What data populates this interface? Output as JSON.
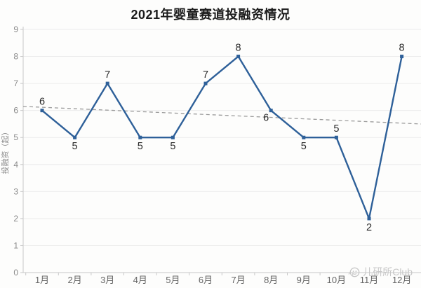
{
  "title": "2021年婴童赛道投融资情况",
  "watermark": {
    "text": "儿研所Club",
    "icon": "face-logo-icon"
  },
  "chart_data": {
    "type": "line",
    "title": "2021年婴童赛道投融资情况",
    "categories": [
      "1月",
      "2月",
      "3月",
      "4月",
      "5月",
      "6月",
      "7月",
      "8月",
      "9月",
      "10月",
      "11月",
      "12月"
    ],
    "series": [
      {
        "name": "投融资",
        "values": [
          6,
          5,
          7,
          5,
          5,
          7,
          8,
          6,
          5,
          5,
          2,
          8
        ]
      }
    ],
    "data_labels": [
      "6",
      "5",
      "7",
      "5",
      "5",
      "7",
      "8",
      "6",
      "5",
      "5",
      "2",
      "8"
    ],
    "label_positions": [
      "above",
      "below",
      "above",
      "below",
      "below",
      "above",
      "above",
      "below-left",
      "below",
      "above",
      "below",
      "above"
    ],
    "trendline": {
      "style": "dashed",
      "start_value": 6.15,
      "end_value": 5.5,
      "color": "#9a9a9a"
    },
    "xlabel": "",
    "ylabel": "投融资（起）",
    "ylim": [
      0,
      9
    ],
    "yticks": [
      0,
      1,
      2,
      3,
      4,
      5,
      6,
      7,
      8,
      9
    ],
    "grid": true,
    "legend": "none",
    "line_color": "#2e6099",
    "marker": "square",
    "grid_color": "#ececec",
    "axis_color": "#c8c8c8",
    "tick_label_color": "#8a8a8a",
    "x_label_color": "#666666",
    "data_label_color": "#2b2b2b"
  }
}
